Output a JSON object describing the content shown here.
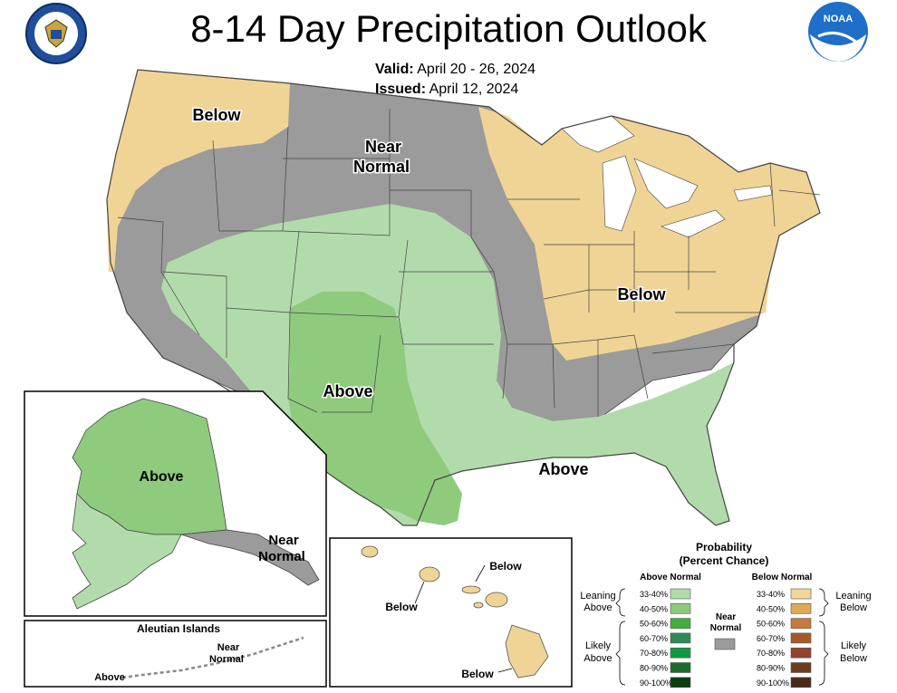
{
  "header": {
    "title": "8-14 Day Precipitation Outlook",
    "valid_label": "Valid:",
    "valid_dates": "April 20 - 26, 2024",
    "issued_label": "Issued:",
    "issued_date": "April 12, 2024"
  },
  "map_labels": {
    "below_northwest": "Below",
    "near_normal_1": "Near",
    "near_normal_2": "Normal",
    "below_east": "Below",
    "above_southwest": "Above",
    "above_southeast": "Above"
  },
  "alaska": {
    "above": "Above",
    "near_1": "Near",
    "near_2": "Normal"
  },
  "aleutian": {
    "title": "Aleutian Islands",
    "near_1": "Near",
    "near_2": "Normal",
    "above": "Above"
  },
  "hawaii": {
    "below_1": "Below",
    "below_2": "Below",
    "below_3": "Below"
  },
  "legend": {
    "title_1": "Probability",
    "title_2": "(Percent Chance)",
    "above_header": "Above Normal",
    "below_header": "Below Normal",
    "near_label_1": "Near",
    "near_label_2": "Normal",
    "leaning_above_1": "Leaning",
    "leaning_above_2": "Above",
    "likely_above_1": "Likely",
    "likely_above_2": "Above",
    "leaning_below_1": "Leaning",
    "leaning_below_2": "Below",
    "likely_below_1": "Likely",
    "likely_below_2": "Below",
    "above_rows": [
      {
        "label": "33-40%",
        "color": "#b2dbab"
      },
      {
        "label": "40-50%",
        "color": "#8fc97f"
      },
      {
        "label": "50-60%",
        "color": "#44ae3a"
      },
      {
        "label": "60-70%",
        "color": "#2e8b57"
      },
      {
        "label": "70-80%",
        "color": "#0f9a40"
      },
      {
        "label": "80-90%",
        "color": "#1e6b2b"
      },
      {
        "label": "90-100%",
        "color": "#0b3d12"
      }
    ],
    "below_rows": [
      {
        "label": "33-40%",
        "color": "#f2d599"
      },
      {
        "label": "40-50%",
        "color": "#ddaa55"
      },
      {
        "label": "50-60%",
        "color": "#c57b3a"
      },
      {
        "label": "60-70%",
        "color": "#a65a2c"
      },
      {
        "label": "70-80%",
        "color": "#93422e"
      },
      {
        "label": "80-90%",
        "color": "#6e3b1c"
      },
      {
        "label": "90-100%",
        "color": "#4a2a1a"
      }
    ],
    "near_color": "#9b9b9b"
  },
  "colors": {
    "leaning_below": "#f0d495",
    "near_normal": "#9b9b9b",
    "leaning_above": "#b2dbab",
    "above_40_50": "#8ecb7d",
    "state_lines": "#444444"
  },
  "icons": [
    "commerce-seal-icon",
    "noaa-logo-icon"
  ]
}
